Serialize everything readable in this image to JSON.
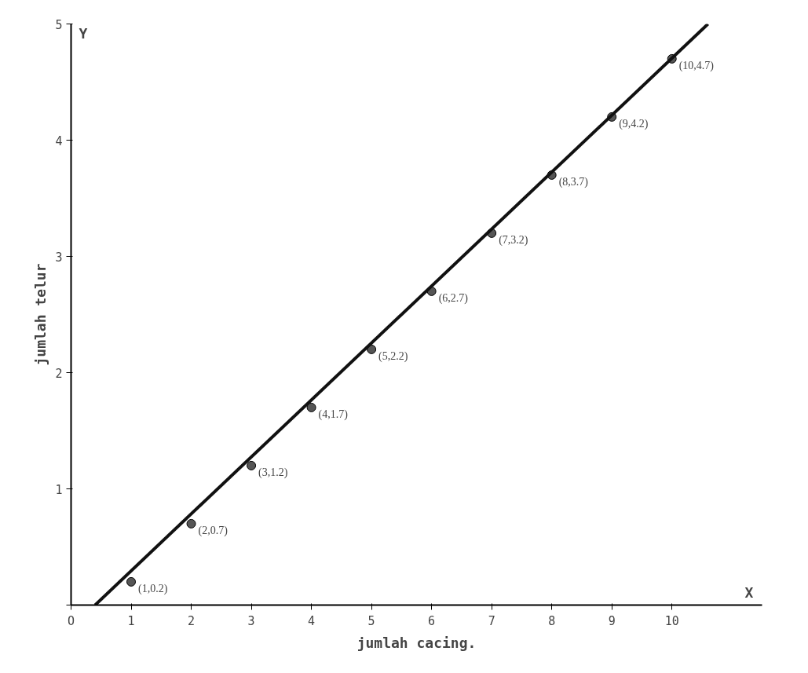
{
  "chart_data": {
    "type": "scatter",
    "xlabel": "jumlah cacing.",
    "ylabel": "jumlah telur",
    "annotations": [
      "Y",
      "X"
    ],
    "xlim": [
      0,
      11.5
    ],
    "ylim": [
      0,
      5
    ],
    "xticks": [
      {
        "value": 0,
        "label": "O"
      },
      1,
      2,
      3,
      4,
      5,
      6,
      7,
      8,
      9,
      10
    ],
    "yticks": [
      {
        "value": 0,
        "label": null
      },
      1,
      2,
      3,
      4,
      5
    ],
    "grid": false,
    "marker": "circle",
    "series": [
      {
        "color": "#555555",
        "x": [
          1,
          2,
          3,
          4,
          5,
          6,
          7,
          8,
          9,
          10
        ],
        "values": [
          0.2,
          0.7,
          1.2,
          1.7,
          2.2,
          2.7,
          3.2,
          3.7,
          4.2,
          4.7
        ],
        "value_labels": [
          "(1,0.2)",
          "(2,0.7)",
          "(3,1.2)",
          "(4,1.7)",
          "(5,2.2)",
          "(6,2.7)",
          "(7,3.2)",
          "(8,3.7)",
          "(9,4.2)",
          "(10,4.7)"
        ]
      },
      {
        "type": "line",
        "color": "#111111",
        "x": [
          0.4,
          10.6
        ],
        "values": [
          0,
          5
        ],
        "line_style": "solid",
        "marker": "none"
      }
    ]
  }
}
